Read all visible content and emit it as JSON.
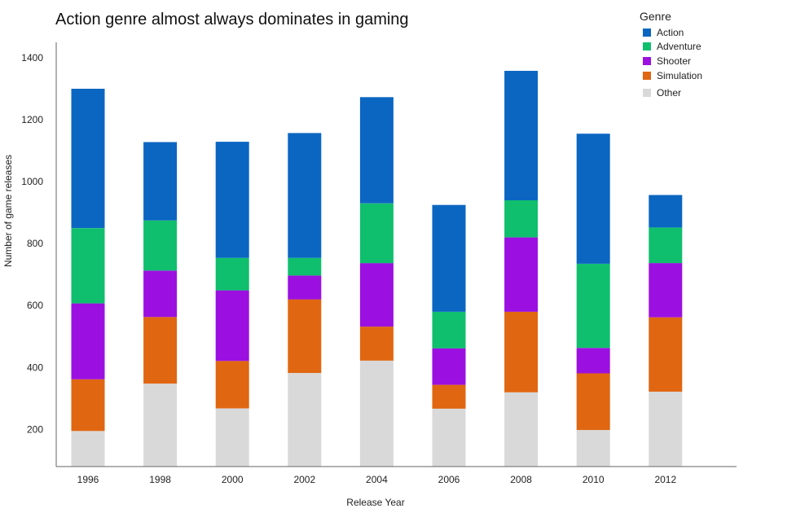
{
  "chart_data": {
    "type": "bar",
    "stacked": true,
    "title": "Action genre almost always dominates in gaming",
    "xlabel": "Release Year",
    "ylabel": "Number of game releases",
    "categories": [
      "1996",
      "1998",
      "2000",
      "2002",
      "2004",
      "2006",
      "2008",
      "2010",
      "2012"
    ],
    "ylim": [
      80,
      1450
    ],
    "yticks": [
      200,
      400,
      600,
      800,
      1000,
      1200,
      1400
    ],
    "grid": false,
    "legend": {
      "title": "Genre",
      "position": "top-right"
    },
    "series": [
      {
        "name": "Other",
        "color": "#d9d9d9",
        "values": [
          195,
          348,
          268,
          382,
          422,
          267,
          320,
          198,
          322
        ]
      },
      {
        "name": "Simulation",
        "color": "#e06612",
        "values": [
          167,
          215,
          153,
          238,
          110,
          77,
          260,
          183,
          240
        ]
      },
      {
        "name": "Shooter",
        "color": "#9b10e0",
        "values": [
          245,
          150,
          228,
          77,
          205,
          118,
          240,
          82,
          175
        ]
      },
      {
        "name": "Adventure",
        "color": "#0fbf6e",
        "values": [
          243,
          162,
          105,
          57,
          193,
          118,
          120,
          272,
          115
        ]
      },
      {
        "name": "Action",
        "color": "#0b66c2",
        "values": [
          450,
          253,
          375,
          403,
          343,
          345,
          418,
          420,
          105
        ]
      }
    ],
    "legend_order": [
      "Action",
      "Adventure",
      "Shooter",
      "Simulation",
      "Other"
    ]
  }
}
